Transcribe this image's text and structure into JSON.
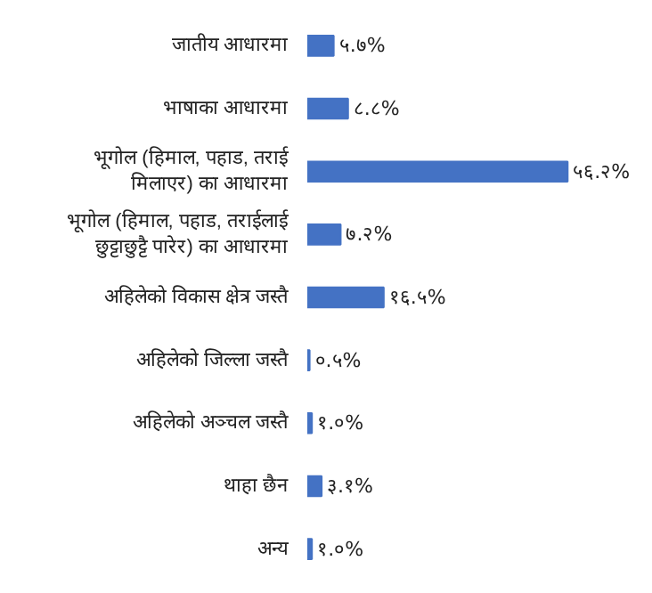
{
  "chart_data": {
    "type": "bar",
    "orientation": "horizontal",
    "categories": [
      "जातीय आधारमा",
      "भाषाका आधारमा",
      "भूगोल (हिमाल, पहाड, तराई\nमिलाएर) का आधारमा",
      "भूगोल (हिमाल, पहाड, तराईलाई\nछुट्टाछुट्टै पारेर) का आधारमा",
      "अहिलेको विकास क्षेत्र जस्तै",
      "अहिलेको जिल्ला जस्तै",
      "अहिलेको अञ्चल जस्तै",
      "थाहा छैन",
      "अन्य"
    ],
    "values": [
      5.7,
      8.8,
      56.2,
      7.2,
      16.5,
      0.5,
      1.0,
      3.1,
      1.0
    ],
    "value_labels": [
      "५.७%",
      "८.८%",
      "५६.२%",
      "७.२%",
      "१६.५%",
      "०.५%",
      "१.०%",
      "३.१%",
      "१.०%"
    ],
    "color": "#4472c4"
  }
}
